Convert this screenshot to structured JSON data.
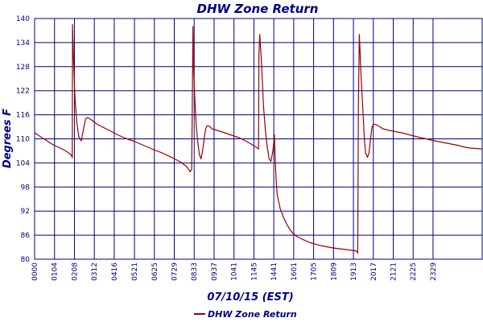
{
  "colors": {
    "text": "#000080",
    "grid": "#000080",
    "axis": "#000080",
    "series": "#990000",
    "background": "#ffffff"
  },
  "chart_data": {
    "type": "line",
    "title": "DHW Zone Return",
    "xlabel": "07/10/15 (EST)",
    "ylabel": "Degrees F",
    "ylim": [
      80,
      140
    ],
    "yticks": [
      80,
      86,
      92,
      98,
      104,
      110,
      116,
      122,
      128,
      134,
      140
    ],
    "xlim": [
      0,
      1439
    ],
    "xticks": [
      {
        "label": "0000",
        "x": 0
      },
      {
        "label": "0104",
        "x": 64
      },
      {
        "label": "0208",
        "x": 128
      },
      {
        "label": "0312",
        "x": 192
      },
      {
        "label": "0416",
        "x": 256
      },
      {
        "label": "0521",
        "x": 321
      },
      {
        "label": "0625",
        "x": 385
      },
      {
        "label": "0729",
        "x": 449
      },
      {
        "label": "0833",
        "x": 513
      },
      {
        "label": "0937",
        "x": 577
      },
      {
        "label": "1041",
        "x": 641
      },
      {
        "label": "1145",
        "x": 705
      },
      {
        "label": "1441",
        "x": 769
      },
      {
        "label": "1601",
        "x": 833
      },
      {
        "label": "1705",
        "x": 897
      },
      {
        "label": "1809",
        "x": 961
      },
      {
        "label": "1913",
        "x": 1025
      },
      {
        "label": "2017",
        "x": 1089
      },
      {
        "label": "2121",
        "x": 1153
      },
      {
        "label": "2225",
        "x": 1217
      },
      {
        "label": "2329",
        "x": 1281
      }
    ],
    "grid": true,
    "legend_position": "bottom-left",
    "series": [
      {
        "name": "DHW Zone Return",
        "x": [
          0,
          20,
          40,
          60,
          80,
          100,
          118,
          121,
          122,
          125,
          130,
          136,
          142,
          150,
          155,
          160,
          164,
          170,
          180,
          190,
          200,
          210,
          230,
          250,
          270,
          290,
          320,
          350,
          380,
          410,
          440,
          470,
          490,
          500,
          505,
          508,
          509,
          511,
          515,
          520,
          525,
          530,
          535,
          540,
          545,
          550,
          555,
          560,
          565,
          570,
          600,
          630,
          660,
          690,
          715,
          720,
          721,
          724,
          730,
          736,
          742,
          748,
          754,
          760,
          766,
          771,
          773,
          776,
          780,
          790,
          800,
          810,
          820,
          830,
          840,
          860,
          880,
          900,
          920,
          940,
          960,
          980,
          1000,
          1020,
          1030,
          1036,
          1037,
          1039,
          1041,
          1044,
          1050,
          1055,
          1060,
          1064,
          1070,
          1075,
          1080,
          1085,
          1090,
          1100,
          1110,
          1120,
          1140,
          1160,
          1180,
          1200,
          1220,
          1240,
          1260,
          1280,
          1300,
          1320,
          1340,
          1360,
          1380,
          1400,
          1439
        ],
        "y": [
          111.5,
          110.5,
          109.5,
          108.5,
          107.8,
          107,
          106,
          105.3,
          138.5,
          130,
          120,
          114,
          110.5,
          109.5,
          111.5,
          113.5,
          115,
          115.3,
          114.9,
          114.3,
          113.7,
          113.3,
          112.5,
          111.7,
          110.9,
          110.2,
          109.4,
          108.4,
          107.4,
          106.5,
          105.4,
          104.2,
          103,
          101.8,
          102.5,
          128,
          138,
          128,
          120,
          113,
          109,
          106,
          105,
          107,
          110,
          112.5,
          113.3,
          113.2,
          112.9,
          112.5,
          111.8,
          111,
          110.2,
          109,
          107.8,
          107.5,
          131,
          136,
          128,
          118,
          112,
          108,
          105,
          104.4,
          107,
          111,
          106,
          100.5,
          96,
          92.5,
          90.5,
          88.8,
          87.5,
          86.5,
          85.8,
          85,
          84.3,
          83.8,
          83.4,
          83.1,
          82.8,
          82.6,
          82.4,
          82.2,
          82.1,
          82,
          81.9,
          81.5,
          118,
          136,
          125,
          118,
          110,
          106.5,
          105.4,
          106.5,
          110,
          113,
          113.7,
          113.5,
          113,
          112.5,
          112.1,
          111.8,
          111.5,
          111.1,
          110.7,
          110.3,
          110,
          109.6,
          109.3,
          109,
          108.7,
          108.4,
          108,
          107.7,
          107.5
        ]
      }
    ]
  }
}
